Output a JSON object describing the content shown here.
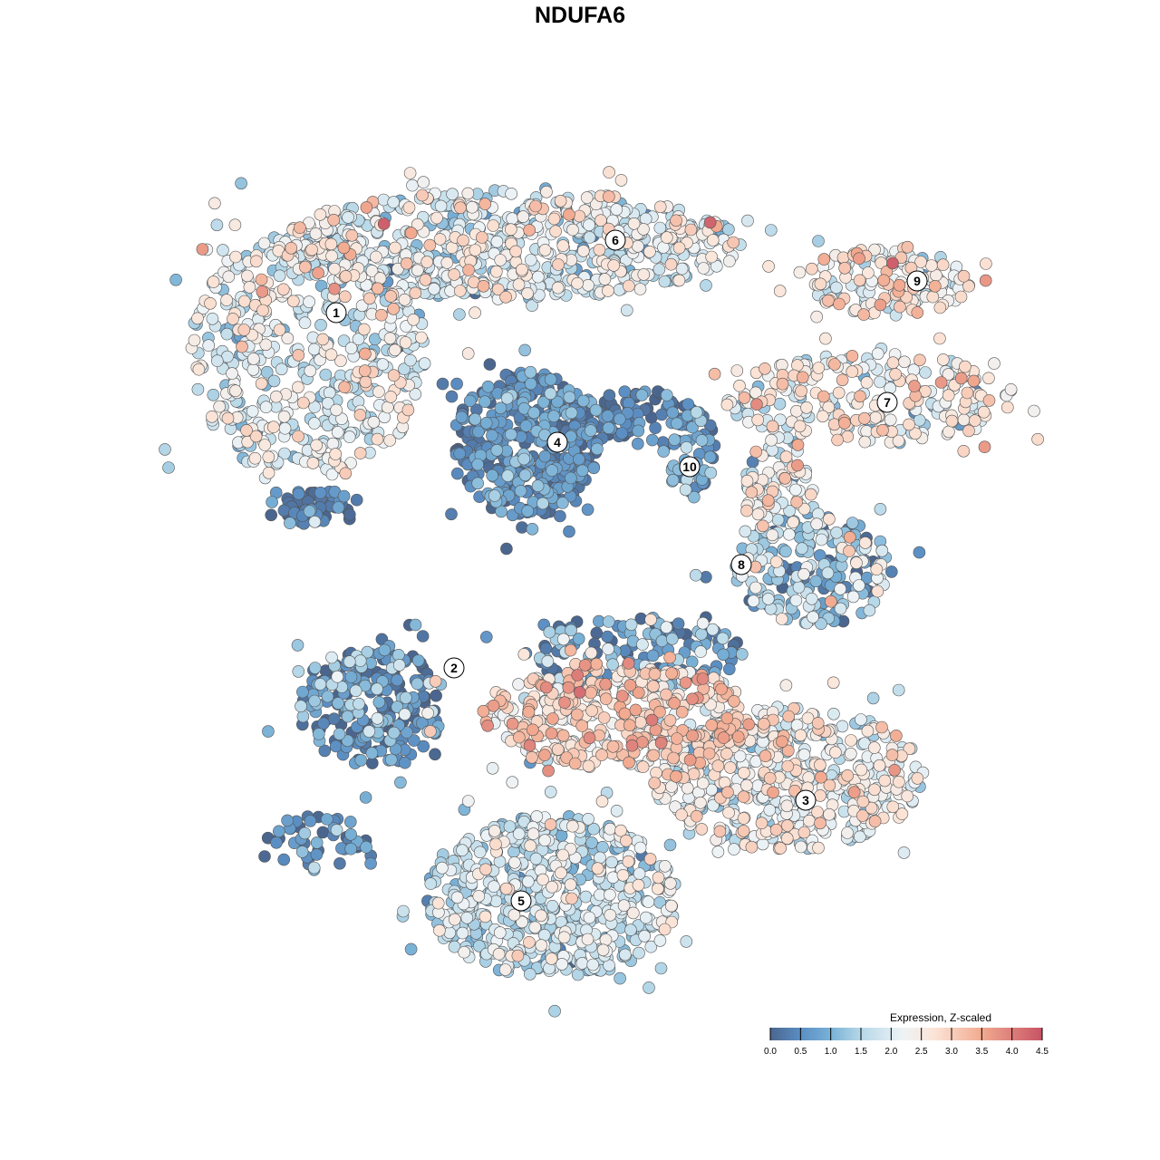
{
  "chart_data": {
    "type": "scatter",
    "title": "NDUFA6",
    "xlabel": "",
    "ylabel": "",
    "xlim": [
      0,
      100
    ],
    "ylim": [
      0,
      100
    ],
    "grid": false,
    "note": "Cells are generated from cluster summaries: center/spread in embedding units, cell count, mean and sd of z-scaled expression",
    "clusters": [
      {
        "id": "1",
        "part": "a",
        "center": [
          14,
          71
        ],
        "spread": [
          13,
          14
        ],
        "n": 500,
        "mean": 2.0,
        "sd": 0.6
      },
      {
        "id": "1",
        "part": "b",
        "center": [
          15,
          54
        ],
        "spread": [
          4,
          2
        ],
        "n": 60,
        "mean": 0.2,
        "sd": 0.3
      },
      {
        "id": "6",
        "part": "a",
        "center": [
          36,
          83
        ],
        "spread": [
          26,
          6
        ],
        "n": 700,
        "mean": 2.0,
        "sd": 0.6
      },
      {
        "id": "4",
        "part": "a",
        "center": [
          38,
          61
        ],
        "spread": [
          8,
          8
        ],
        "n": 400,
        "mean": 0.5,
        "sd": 0.4
      },
      {
        "id": "4",
        "part": "b",
        "center": [
          50,
          64
        ],
        "spread": [
          7,
          3
        ],
        "n": 80,
        "mean": 0.4,
        "sd": 0.4
      },
      {
        "id": "10",
        "part": "a",
        "center": [
          56,
          60
        ],
        "spread": [
          3,
          5
        ],
        "n": 60,
        "mean": 0.8,
        "sd": 0.6
      },
      {
        "id": "9",
        "part": "a",
        "center": [
          78,
          79
        ],
        "spread": [
          9,
          4
        ],
        "n": 150,
        "mean": 2.4,
        "sd": 0.6
      },
      {
        "id": "7",
        "part": "a",
        "center": [
          76,
          66
        ],
        "spread": [
          16,
          5
        ],
        "n": 250,
        "mean": 2.3,
        "sd": 0.6
      },
      {
        "id": "8",
        "part": "a",
        "center": [
          70,
          47
        ],
        "spread": [
          9,
          6
        ],
        "n": 200,
        "mean": 1.2,
        "sd": 0.8
      },
      {
        "id": "8",
        "part": "b",
        "center": [
          66,
          56
        ],
        "spread": [
          4,
          6
        ],
        "n": 80,
        "mean": 2.2,
        "sd": 0.7
      },
      {
        "id": "2",
        "part": "a",
        "center": [
          21,
          32
        ],
        "spread": [
          8,
          7
        ],
        "n": 250,
        "mean": 0.6,
        "sd": 0.6
      },
      {
        "id": "3",
        "part": "a",
        "center": [
          48,
          31
        ],
        "spread": [
          15,
          6
        ],
        "n": 400,
        "mean": 2.8,
        "sd": 0.6
      },
      {
        "id": "3",
        "part": "b",
        "center": [
          67,
          24
        ],
        "spread": [
          15,
          8
        ],
        "n": 500,
        "mean": 2.2,
        "sd": 0.6
      },
      {
        "id": "3",
        "part": "c",
        "center": [
          50,
          38
        ],
        "spread": [
          12,
          4
        ],
        "n": 150,
        "mean": 0.8,
        "sd": 0.7
      },
      {
        "id": "5",
        "part": "a",
        "center": [
          41,
          11
        ],
        "spread": [
          14,
          9
        ],
        "n": 600,
        "mean": 1.7,
        "sd": 0.5
      },
      {
        "id": "2",
        "part": "c",
        "center": [
          15,
          17
        ],
        "spread": [
          6,
          3
        ],
        "n": 50,
        "mean": 0.5,
        "sd": 0.5
      }
    ],
    "cluster_labels": [
      {
        "label": "1",
        "x": 17.1,
        "y": 75.5
      },
      {
        "label": "2",
        "x": 30.1,
        "y": 36.3
      },
      {
        "label": "3",
        "x": 68.9,
        "y": 21.7
      },
      {
        "label": "4",
        "x": 41.5,
        "y": 61.2
      },
      {
        "label": "5",
        "x": 37.5,
        "y": 10.6
      },
      {
        "label": "6",
        "x": 47.9,
        "y": 83.5
      },
      {
        "label": "7",
        "x": 77.9,
        "y": 65.6
      },
      {
        "label": "8",
        "x": 61.8,
        "y": 47.7
      },
      {
        "label": "9",
        "x": 81.2,
        "y": 79.0
      },
      {
        "label": "10",
        "x": 56.1,
        "y": 58.5
      }
    ],
    "legend": {
      "title": "Expression, Z-scaled",
      "position": "bottom-right",
      "range": [
        0,
        4.5
      ],
      "ticks": [
        "0.0",
        "0.5",
        "1.0",
        "1.5",
        "2.0",
        "2.5",
        "3.0",
        "3.5",
        "4.0",
        "4.5"
      ],
      "colors": [
        {
          "v": 0.0,
          "c": "#4a668f"
        },
        {
          "v": 0.5,
          "c": "#5b8ec3"
        },
        {
          "v": 1.0,
          "c": "#79b1d6"
        },
        {
          "v": 1.5,
          "c": "#b6d8e8"
        },
        {
          "v": 2.2,
          "c": "#eef3f6"
        },
        {
          "v": 2.7,
          "c": "#fbe5d8"
        },
        {
          "v": 3.5,
          "c": "#f2aa90"
        },
        {
          "v": 4.5,
          "c": "#c75365"
        }
      ]
    }
  }
}
